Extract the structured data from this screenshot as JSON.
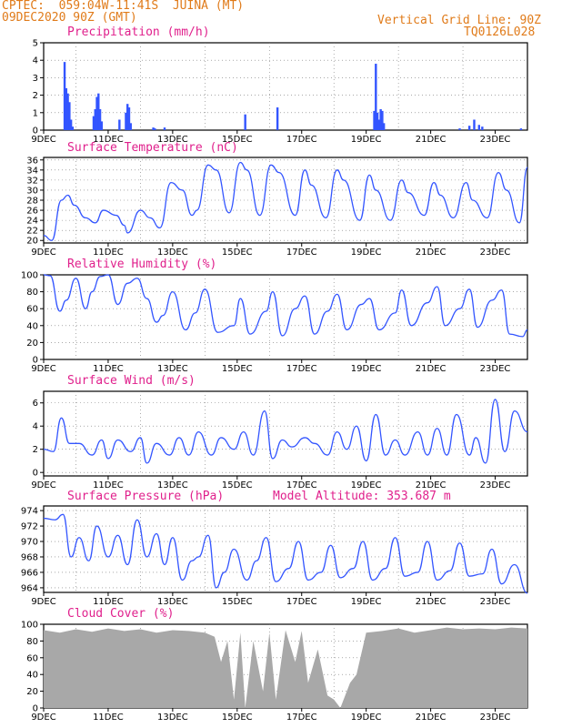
{
  "header": {
    "line1": "CPTEC:  059:04W-11:41S  JUINA (MT)",
    "line2": "09DEC2020 90Z (GMT)",
    "grid_note": "Vertical Grid Line: 90Z",
    "code": "TQ0126L028"
  },
  "colors": {
    "accent": "#e07b1a",
    "title": "#e0208c",
    "series": "#3355ff",
    "cloud": "#a8a8a8"
  },
  "x_axis": {
    "ticks": [
      "9DEC",
      "11DEC",
      "13DEC",
      "15DEC",
      "17DEC",
      "19DEC",
      "21DEC",
      "23DEC"
    ],
    "tick_days": [
      0,
      2,
      4,
      6,
      8,
      10,
      12,
      14
    ],
    "range_days": [
      0,
      15
    ],
    "grid_days": [
      1,
      3,
      5,
      7,
      9,
      11,
      13
    ]
  },
  "chart_data": [
    {
      "type": "bar",
      "title": "Precipitation (mm/h)",
      "ylim": [
        0,
        5
      ],
      "yticks": [
        "0",
        "1",
        "2",
        "3",
        "4",
        "5"
      ],
      "x": [
        0.65,
        0.7,
        0.75,
        0.8,
        0.85,
        0.9,
        1.55,
        1.6,
        1.65,
        1.7,
        1.75,
        1.8,
        2.35,
        2.55,
        2.6,
        2.65,
        2.7,
        3.4,
        3.45,
        3.75,
        6.25,
        7.25,
        10.25,
        10.3,
        10.35,
        10.4,
        10.45,
        10.5,
        10.55,
        12.9,
        13.2,
        13.35,
        13.5,
        13.6,
        14.8
      ],
      "values": [
        3.9,
        2.4,
        2.1,
        1.6,
        0.6,
        0.2,
        0.8,
        1.2,
        1.9,
        2.1,
        1.2,
        0.5,
        0.6,
        1.0,
        1.5,
        1.3,
        0.4,
        0.15,
        0.1,
        0.15,
        0.9,
        1.3,
        1.1,
        3.8,
        1.0,
        0.6,
        1.2,
        1.1,
        0.4,
        0.1,
        0.25,
        0.6,
        0.3,
        0.2,
        0.1
      ]
    },
    {
      "type": "line",
      "title": "Surface Temperature (nC)",
      "ylim": [
        19.5,
        36.5
      ],
      "yticks": [
        "20",
        "22",
        "24",
        "26",
        "28",
        "30",
        "32",
        "34",
        "36"
      ],
      "x": [
        0,
        0.25,
        0.55,
        0.75,
        0.95,
        1.3,
        1.6,
        1.85,
        2.25,
        2.5,
        2.6,
        3.0,
        3.3,
        3.6,
        3.95,
        4.3,
        4.6,
        4.75,
        5.1,
        5.35,
        5.75,
        6.1,
        6.3,
        6.7,
        7.05,
        7.3,
        7.8,
        8.1,
        8.3,
        8.75,
        9.1,
        9.3,
        9.8,
        10.1,
        10.3,
        10.75,
        11.1,
        11.3,
        11.8,
        12.1,
        12.3,
        12.7,
        13.1,
        13.3,
        13.75,
        14.1,
        14.35,
        14.75,
        15.0
      ],
      "values": [
        21,
        20,
        28,
        29,
        27,
        24.5,
        23.5,
        26,
        25,
        23,
        21.5,
        26,
        24.5,
        22.5,
        31.5,
        30,
        25,
        26,
        35,
        34,
        25.5,
        35.5,
        34,
        25,
        35,
        33.5,
        25,
        34,
        31,
        24.5,
        34,
        32,
        24,
        33,
        30,
        24,
        32,
        29.5,
        25,
        31.5,
        29,
        24.5,
        31.5,
        28,
        24.5,
        33.5,
        30,
        23.5,
        34.5
      ]
    },
    {
      "type": "line",
      "title": "Relative Humidity (%)",
      "ylim": [
        0,
        100
      ],
      "yticks": [
        "0",
        "20",
        "40",
        "60",
        "80",
        "100"
      ],
      "x": [
        0,
        0.2,
        0.5,
        0.7,
        1.0,
        1.3,
        1.5,
        1.75,
        2.0,
        2.3,
        2.6,
        2.9,
        3.2,
        3.5,
        3.7,
        4.0,
        4.4,
        4.7,
        5.0,
        5.4,
        5.9,
        6.1,
        6.4,
        6.9,
        7.1,
        7.4,
        7.8,
        8.1,
        8.4,
        8.8,
        9.1,
        9.4,
        9.85,
        10.1,
        10.4,
        10.9,
        11.1,
        11.4,
        11.9,
        12.2,
        12.45,
        12.9,
        13.2,
        13.45,
        13.9,
        14.2,
        14.45,
        14.85,
        15.0
      ],
      "values": [
        100,
        99,
        57,
        70,
        96,
        60,
        80,
        98,
        100,
        65,
        90,
        96,
        72,
        44,
        52,
        80,
        35,
        55,
        83,
        32,
        40,
        72,
        30,
        57,
        80,
        28,
        60,
        75,
        30,
        57,
        77,
        35,
        65,
        72,
        35,
        55,
        82,
        40,
        67,
        86,
        40,
        60,
        83,
        38,
        70,
        82,
        30,
        27,
        35
      ]
    },
    {
      "type": "line",
      "title": "Surface Wind (m/s)",
      "ylim": [
        -0.3,
        7
      ],
      "yticks": [
        "0",
        "2",
        "4",
        "6"
      ],
      "x": [
        0,
        0.3,
        0.55,
        0.8,
        1.1,
        1.5,
        1.8,
        2.0,
        2.3,
        2.7,
        3.0,
        3.2,
        3.5,
        3.9,
        4.2,
        4.5,
        4.8,
        5.2,
        5.5,
        5.9,
        6.2,
        6.5,
        6.85,
        7.1,
        7.4,
        7.7,
        8.1,
        8.4,
        8.8,
        9.1,
        9.4,
        9.7,
        10.0,
        10.3,
        10.6,
        10.9,
        11.2,
        11.6,
        11.9,
        12.2,
        12.5,
        12.8,
        13.2,
        13.4,
        13.7,
        14.0,
        14.3,
        14.6,
        15.0
      ],
      "values": [
        2,
        1.8,
        4.7,
        2.5,
        2.5,
        1.5,
        2.8,
        1.2,
        2.8,
        1.8,
        3,
        0.8,
        2.5,
        1.5,
        3,
        1.5,
        3.5,
        1.5,
        3,
        2,
        3.5,
        1.5,
        5.3,
        1.2,
        2.8,
        2.2,
        3,
        2.5,
        1.5,
        3.5,
        2,
        4,
        1,
        5,
        1.5,
        2.8,
        1.5,
        3.5,
        1.5,
        3.8,
        1.5,
        5,
        1.5,
        3,
        0.8,
        6.3,
        1.8,
        5.3,
        3.5
      ]
    },
    {
      "type": "line",
      "title": "Surface Pressure (hPa)",
      "annotation": "Model Altitude: 353.687 m",
      "ylim": [
        963.4,
        974.6
      ],
      "yticks": [
        "964",
        "966",
        "968",
        "970",
        "972",
        "974"
      ],
      "x": [
        0,
        0.35,
        0.6,
        0.85,
        1.1,
        1.4,
        1.65,
        2.0,
        2.3,
        2.6,
        2.9,
        3.2,
        3.5,
        3.75,
        4.0,
        4.3,
        4.6,
        4.8,
        5.1,
        5.35,
        5.6,
        5.9,
        6.3,
        6.6,
        6.9,
        7.2,
        7.6,
        7.9,
        8.2,
        8.6,
        8.9,
        9.2,
        9.6,
        9.9,
        10.2,
        10.6,
        10.9,
        11.2,
        11.6,
        11.9,
        12.2,
        12.6,
        12.9,
        13.2,
        13.6,
        13.9,
        14.2,
        14.6,
        15.0
      ],
      "values": [
        973,
        972.8,
        973.5,
        968,
        970.5,
        967.5,
        972,
        968,
        970.8,
        967,
        972.8,
        968,
        971,
        967,
        970.5,
        965,
        967.5,
        968,
        970.8,
        964,
        966,
        969,
        965,
        967.5,
        970.5,
        964.8,
        966.5,
        970,
        965,
        966,
        969.5,
        965.3,
        966.5,
        970,
        965,
        966.5,
        970.5,
        965.5,
        966,
        970,
        965,
        966.2,
        969.8,
        965.5,
        965.8,
        969,
        964.5,
        967,
        963.3
      ]
    },
    {
      "type": "area",
      "title": "Cloud Cover (%)",
      "ylim": [
        0,
        100
      ],
      "yticks": [
        "0",
        "20",
        "40",
        "60",
        "80",
        "100"
      ],
      "x": [
        0,
        0.5,
        1.0,
        1.5,
        2.0,
        2.5,
        3.0,
        3.5,
        4.0,
        4.5,
        5.0,
        5.3,
        5.5,
        5.7,
        5.9,
        6.1,
        6.25,
        6.5,
        6.8,
        7.0,
        7.2,
        7.5,
        7.8,
        8.0,
        8.2,
        8.5,
        8.8,
        9.0,
        9.2,
        9.5,
        9.7,
        10.0,
        10.5,
        11.0,
        11.5,
        12.0,
        12.5,
        13.0,
        13.5,
        14.0,
        14.5,
        15.0
      ],
      "values": [
        93,
        90,
        94,
        91,
        95,
        92,
        94,
        90,
        93,
        92,
        90,
        85,
        55,
        80,
        10,
        90,
        0,
        80,
        20,
        90,
        10,
        93,
        55,
        92,
        30,
        70,
        15,
        10,
        0,
        30,
        40,
        90,
        92,
        95,
        90,
        93,
        96,
        94,
        95,
        94,
        96,
        95
      ]
    }
  ]
}
